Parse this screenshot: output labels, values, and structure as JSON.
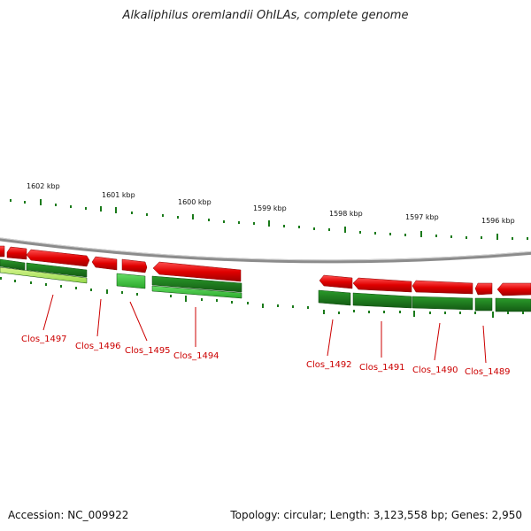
{
  "title": "Alkaliphilus oremlandii OhILAs, complete genome",
  "footer": {
    "accession": "Accession: NC_009922",
    "topology": "Topology: circular; Length: 3,123,558 bp; Genes: 2,950"
  },
  "scale_labels": [
    "1602 kbp",
    "1601 kbp",
    "1600 kbp",
    "1599 kbp",
    "1598 kbp",
    "1597 kbp",
    "1596 kbp"
  ],
  "genes": [
    {
      "label": "Clos_1497"
    },
    {
      "label": "Clos_1496"
    },
    {
      "label": "Clos_1495"
    },
    {
      "label": "Clos_1494"
    },
    {
      "label": "Clos_1492"
    },
    {
      "label": "Clos_1491"
    },
    {
      "label": "Clos_1490"
    },
    {
      "label": "Clos_1489"
    }
  ],
  "colors": {
    "forward_feature": "#e00000",
    "cds_dark": "#1e7a1e",
    "cds_light": "#3fbf3f",
    "cds_yellow": "#b5e86a",
    "backbone": "#888888",
    "label": "#cc0000"
  }
}
